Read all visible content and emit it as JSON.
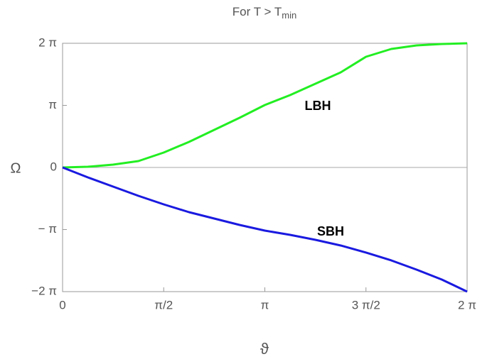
{
  "chart_data": {
    "type": "line",
    "title": "For  T > T",
    "title_subscript": "min",
    "x_label": "ϑ",
    "y_label": "Ω",
    "x": [
      0,
      0.3927,
      0.7854,
      1.1781,
      1.5708,
      1.9635,
      2.3562,
      2.7489,
      3.1416,
      3.5343,
      3.927,
      4.3197,
      4.7124,
      5.1051,
      5.4978,
      5.8905,
      6.2832
    ],
    "series": [
      {
        "name": "LBH",
        "color": "#22ee22",
        "values": [
          0,
          0.036,
          0.144,
          0.323,
          0.754,
          1.293,
          1.903,
          2.513,
          3.16,
          3.663,
          4.236,
          4.811,
          5.601,
          5.996,
          6.175,
          6.247,
          6.283
        ]
      },
      {
        "name": "SBH",
        "color": "#1a1ae0",
        "values": [
          0,
          -0.503,
          -0.969,
          -1.436,
          -1.867,
          -2.262,
          -2.585,
          -2.908,
          -3.195,
          -3.411,
          -3.662,
          -3.949,
          -4.308,
          -4.703,
          -5.17,
          -5.672,
          -6.283
        ]
      }
    ],
    "xlim": [
      0,
      6.2832
    ],
    "ylim": [
      -6.2832,
      6.2832
    ],
    "xticks": [
      0,
      {
        "value": 1.5708,
        "label": "π/2"
      },
      {
        "value": 3.1416,
        "label": "π"
      },
      {
        "value": 4.7124,
        "label": "3 π/2"
      },
      {
        "value": 6.2832,
        "label": "2 π"
      }
    ],
    "yticks": [
      {
        "value": -6.2832,
        "label": "−2 π"
      },
      {
        "value": -3.1416,
        "label": "− π"
      },
      0,
      {
        "value": 3.1416,
        "label": "π"
      },
      {
        "value": 6.2832,
        "label": "2 π"
      }
    ]
  }
}
